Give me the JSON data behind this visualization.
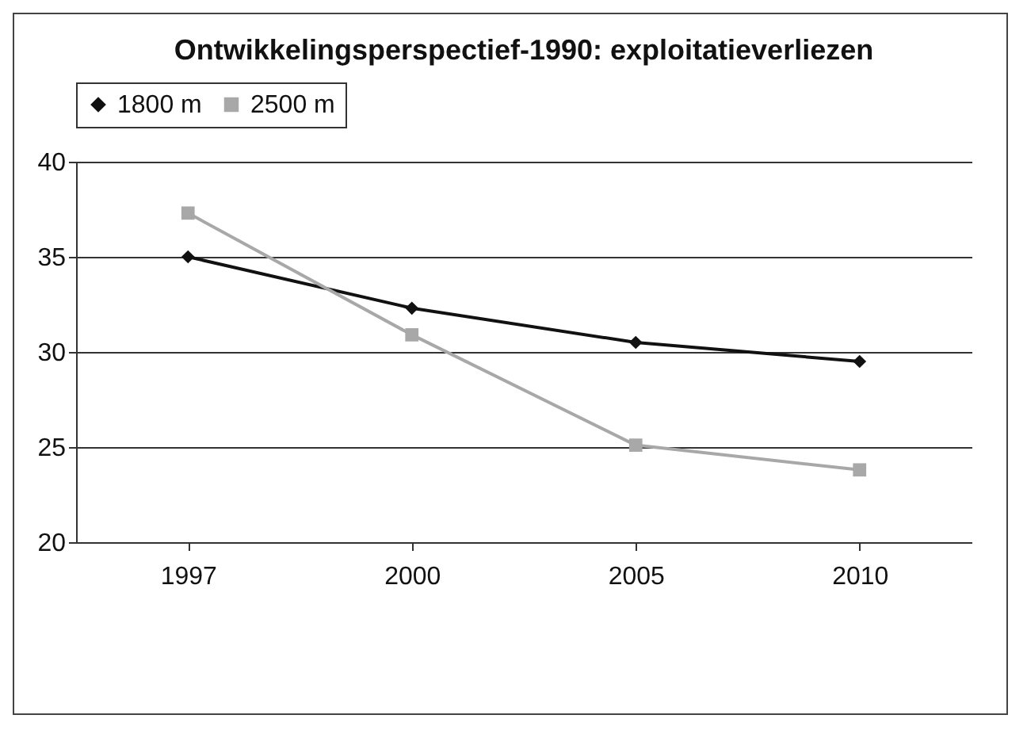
{
  "chart_data": {
    "type": "line",
    "title": "Ontwikkelingsperspectief-1990: exploitatieverliezen",
    "categories": [
      "1997",
      "2000",
      "2005",
      "2010"
    ],
    "series": [
      {
        "name": "1800 m",
        "color": "#111111",
        "marker": "diamond",
        "values": [
          35,
          32.3,
          30.5,
          29.5
        ]
      },
      {
        "name": "2500 m",
        "color": "#a8a8a8",
        "marker": "square",
        "values": [
          37.3,
          30.9,
          25.1,
          23.8
        ]
      }
    ],
    "ylim": [
      20,
      40
    ],
    "yticks": [
      20,
      25,
      30,
      35,
      40
    ],
    "grid": "y",
    "legend": "top"
  }
}
